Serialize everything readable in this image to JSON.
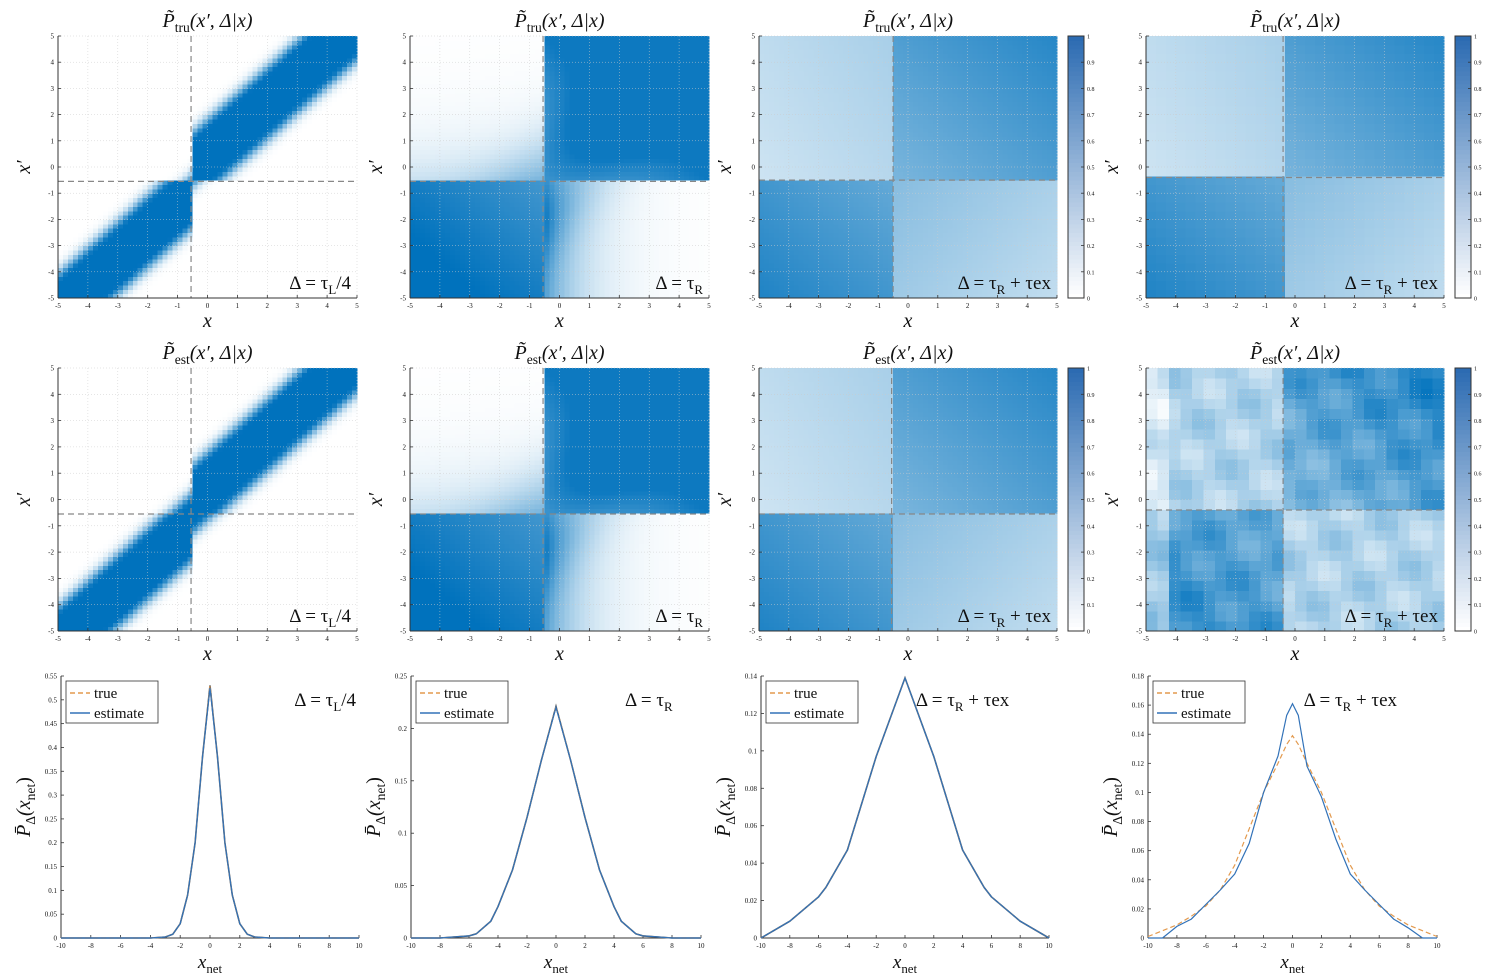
{
  "chart_data": [
    {
      "type": "heatmap",
      "row": 0,
      "col": 0,
      "title": "P̃tru(x′, Δ|x)",
      "title_base": "P̃",
      "title_sub": "tru",
      "title_args": "(x′, Δ|x)",
      "annotation_base": "Δ = τ",
      "annotation_sub": "L",
      "annotation_tail": "/4",
      "xlabel": "x",
      "ylabel": "x′",
      "xlim": [
        -5,
        5
      ],
      "ylim": [
        -5,
        5
      ],
      "xticks": [
        -5,
        -4,
        -3,
        -2,
        -1,
        0,
        1,
        2,
        3,
        4,
        5
      ],
      "yticks": [
        -5,
        -4,
        -3,
        -2,
        -1,
        0,
        1,
        2,
        3,
        4,
        5
      ],
      "threshold": -0.55,
      "pattern": "diagonal-band",
      "colorbar": false
    },
    {
      "type": "heatmap",
      "row": 0,
      "col": 1,
      "title": "P̃tru(x′, Δ|x)",
      "title_base": "P̃",
      "title_sub": "tru",
      "title_args": "(x′, Δ|x)",
      "annotation_base": "Δ = τ",
      "annotation_sub": "R",
      "annotation_tail": "",
      "xlabel": "x",
      "ylabel": "x′",
      "xlim": [
        -5,
        5
      ],
      "ylim": [
        -5,
        5
      ],
      "xticks": [
        -5,
        -4,
        -3,
        -2,
        -1,
        0,
        1,
        2,
        3,
        4,
        5
      ],
      "yticks": [
        -5,
        -4,
        -3,
        -2,
        -1,
        0,
        1,
        2,
        3,
        4,
        5
      ],
      "threshold": -0.55,
      "pattern": "blocks-strong",
      "colorbar": false
    },
    {
      "type": "heatmap",
      "row": 0,
      "col": 2,
      "title": "P̃tru(x′, Δ|x)",
      "title_base": "P̃",
      "title_sub": "tru",
      "title_args": "(x′, Δ|x)",
      "annotation_base": "Δ = τ",
      "annotation_sub": "R",
      "annotation_tail": " + τex",
      "xlabel": "x",
      "ylabel": "x′",
      "xlim": [
        -5,
        5
      ],
      "ylim": [
        -5,
        5
      ],
      "xticks": [
        -5,
        -4,
        -3,
        -2,
        -1,
        0,
        1,
        2,
        3,
        4,
        5
      ],
      "yticks": [
        -5,
        -4,
        -3,
        -2,
        -1,
        0,
        1,
        2,
        3,
        4,
        5
      ],
      "threshold": -0.5,
      "pattern": "blocks-soft",
      "colorbar": true,
      "colorbar_ticks": [
        0,
        0.1,
        0.2,
        0.3,
        0.4,
        0.5,
        0.6,
        0.7,
        0.8,
        0.9,
        1
      ]
    },
    {
      "type": "heatmap",
      "row": 0,
      "col": 3,
      "title": "P̃tru(x′, Δ|x)",
      "title_base": "P̃",
      "title_sub": "tru",
      "title_args": "(x′, Δ|x)",
      "annotation_base": "Δ = τ",
      "annotation_sub": "R",
      "annotation_tail": " + τex",
      "xlabel": "x",
      "ylabel": "x′",
      "xlim": [
        -5,
        5
      ],
      "ylim": [
        -5,
        5
      ],
      "xticks": [
        -5,
        -4,
        -3,
        -2,
        -1,
        0,
        1,
        2,
        3,
        4,
        5
      ],
      "yticks": [
        -5,
        -4,
        -3,
        -2,
        -1,
        0,
        1,
        2,
        3,
        4,
        5
      ],
      "threshold": -0.4,
      "pattern": "blocks-soft-pixel",
      "colorbar": true,
      "colorbar_ticks": [
        0,
        0.1,
        0.2,
        0.3,
        0.4,
        0.5,
        0.6,
        0.7,
        0.8,
        0.9,
        1
      ]
    },
    {
      "type": "heatmap",
      "row": 1,
      "col": 0,
      "title": "P̃est(x′, Δ|x)",
      "title_base": "P̃",
      "title_sub": "est",
      "title_args": "(x′, Δ|x)",
      "annotation_base": "Δ = τ",
      "annotation_sub": "L",
      "annotation_tail": "/4",
      "xlabel": "x",
      "ylabel": "x′",
      "xlim": [
        -5,
        5
      ],
      "ylim": [
        -5,
        5
      ],
      "xticks": [
        -5,
        -4,
        -3,
        -2,
        -1,
        0,
        1,
        2,
        3,
        4,
        5
      ],
      "yticks": [
        -5,
        -4,
        -3,
        -2,
        -1,
        0,
        1,
        2,
        3,
        4,
        5
      ],
      "threshold": -0.55,
      "pattern": "diagonal-band-smooth",
      "colorbar": false
    },
    {
      "type": "heatmap",
      "row": 1,
      "col": 1,
      "title": "P̃est(x′, Δ|x)",
      "title_base": "P̃",
      "title_sub": "est",
      "title_args": "(x′, Δ|x)",
      "annotation_base": "Δ = τ",
      "annotation_sub": "R",
      "annotation_tail": "",
      "xlabel": "x",
      "ylabel": "x′",
      "xlim": [
        -5,
        5
      ],
      "ylim": [
        -5,
        5
      ],
      "xticks": [
        -5,
        -4,
        -3,
        -2,
        -1,
        0,
        1,
        2,
        3,
        4,
        5
      ],
      "yticks": [
        -5,
        -4,
        -3,
        -2,
        -1,
        0,
        1,
        2,
        3,
        4,
        5
      ],
      "threshold": -0.55,
      "pattern": "blocks-strong",
      "colorbar": false
    },
    {
      "type": "heatmap",
      "row": 1,
      "col": 2,
      "title": "P̃est(x′, Δ|x)",
      "title_base": "P̃",
      "title_sub": "est",
      "title_args": "(x′, Δ|x)",
      "annotation_base": "Δ = τ",
      "annotation_sub": "R",
      "annotation_tail": " + τex",
      "xlabel": "x",
      "ylabel": "x′",
      "xlim": [
        -5,
        5
      ],
      "ylim": [
        -5,
        5
      ],
      "xticks": [
        -5,
        -4,
        -3,
        -2,
        -1,
        0,
        1,
        2,
        3,
        4,
        5
      ],
      "yticks": [
        -5,
        -4,
        -3,
        -2,
        -1,
        0,
        1,
        2,
        3,
        4,
        5
      ],
      "threshold": -0.55,
      "pattern": "blocks-soft",
      "colorbar": true,
      "colorbar_ticks": [
        0,
        0.1,
        0.2,
        0.3,
        0.4,
        0.5,
        0.6,
        0.7,
        0.8,
        0.9,
        1
      ]
    },
    {
      "type": "heatmap",
      "row": 1,
      "col": 3,
      "title": "P̃est(x′, Δ|x)",
      "title_base": "P̃",
      "title_sub": "est",
      "title_args": "(x′, Δ|x)",
      "annotation_base": "Δ = τ",
      "annotation_sub": "R",
      "annotation_tail": " + τex",
      "xlabel": "x",
      "ylabel": "x′",
      "xlim": [
        -5,
        5
      ],
      "ylim": [
        -5,
        5
      ],
      "xticks": [
        -5,
        -4,
        -3,
        -2,
        -1,
        0,
        1,
        2,
        3,
        4,
        5
      ],
      "yticks": [
        -5,
        -4,
        -3,
        -2,
        -1,
        0,
        1,
        2,
        3,
        4,
        5
      ],
      "threshold": -0.4,
      "pattern": "noisy",
      "colorbar": true,
      "colorbar_ticks": [
        0,
        0.1,
        0.2,
        0.3,
        0.4,
        0.5,
        0.6,
        0.7,
        0.8,
        0.9,
        1
      ]
    },
    {
      "type": "line",
      "row": 2,
      "col": 0,
      "annotation_base": "Δ = τ",
      "annotation_sub": "L",
      "annotation_tail": "/4",
      "xlabel": "xnet",
      "xlabel_base": "x",
      "xlabel_sub": "net",
      "ylabel_base": "P̄",
      "ylabel_sub": "Δ",
      "ylabel_args": "(x",
      "ylabel_args_sub": "net",
      "ylabel_close": ")",
      "xlim": [
        -10,
        10
      ],
      "ylim": [
        0,
        0.55
      ],
      "xticks": [
        -10,
        -8,
        -6,
        -4,
        -2,
        0,
        2,
        4,
        6,
        8,
        10
      ],
      "yticks": [
        0,
        0.05,
        0.1,
        0.15,
        0.2,
        0.25,
        0.3,
        0.35,
        0.4,
        0.45,
        0.5,
        0.55
      ],
      "legend": [
        "true",
        "estimate"
      ],
      "legend_loc": "top-left",
      "x": [
        -10,
        -4,
        -3,
        -2.5,
        -2,
        -1.5,
        -1,
        -0.5,
        0,
        0.5,
        1,
        1.5,
        2,
        2.5,
        3,
        4,
        10
      ],
      "series": [
        {
          "name": "true",
          "values": [
            0,
            0,
            0.002,
            0.008,
            0.03,
            0.09,
            0.2,
            0.38,
            0.53,
            0.38,
            0.2,
            0.09,
            0.03,
            0.008,
            0.002,
            0,
            0
          ]
        },
        {
          "name": "estimate",
          "values": [
            0,
            0,
            0.002,
            0.008,
            0.03,
            0.09,
            0.2,
            0.38,
            0.525,
            0.38,
            0.2,
            0.09,
            0.03,
            0.008,
            0.002,
            0,
            0
          ]
        }
      ]
    },
    {
      "type": "line",
      "row": 2,
      "col": 1,
      "annotation_base": "Δ = τ",
      "annotation_sub": "R",
      "annotation_tail": "",
      "xlabel": "xnet",
      "xlabel_base": "x",
      "xlabel_sub": "net",
      "ylabel_base": "P̄",
      "ylabel_sub": "Δ",
      "ylabel_args": "(x",
      "ylabel_args_sub": "net",
      "ylabel_close": ")",
      "xlim": [
        -10,
        10
      ],
      "ylim": [
        0,
        0.25
      ],
      "xticks": [
        -10,
        -8,
        -6,
        -4,
        -2,
        0,
        2,
        4,
        6,
        8,
        10
      ],
      "yticks": [
        0,
        0.05,
        0.1,
        0.15,
        0.2,
        0.25
      ],
      "legend": [
        "true",
        "estimate"
      ],
      "legend_loc": "top-left",
      "x": [
        -10,
        -8,
        -6,
        -5.5,
        -4.5,
        -4,
        -3,
        -2,
        -1,
        0,
        1,
        2,
        3,
        4,
        4.5,
        5.5,
        6,
        8,
        10
      ],
      "series": [
        {
          "name": "true",
          "values": [
            0,
            0,
            0.002,
            0.004,
            0.016,
            0.03,
            0.065,
            0.115,
            0.17,
            0.221,
            0.17,
            0.115,
            0.065,
            0.03,
            0.016,
            0.004,
            0.002,
            0,
            0
          ]
        },
        {
          "name": "estimate",
          "values": [
            0,
            0,
            0.002,
            0.004,
            0.016,
            0.03,
            0.065,
            0.115,
            0.17,
            0.22,
            0.17,
            0.115,
            0.065,
            0.03,
            0.016,
            0.004,
            0.002,
            0,
            0
          ]
        }
      ]
    },
    {
      "type": "line",
      "row": 2,
      "col": 2,
      "annotation_base": "Δ = τ",
      "annotation_sub": "R",
      "annotation_tail": " + τex",
      "xlabel": "xnet",
      "xlabel_base": "x",
      "xlabel_sub": "net",
      "ylabel_base": "P̄",
      "ylabel_sub": "Δ",
      "ylabel_args": "(x",
      "ylabel_args_sub": "net",
      "ylabel_close": ")",
      "xlim": [
        -10,
        10
      ],
      "ylim": [
        0,
        0.14
      ],
      "xticks": [
        -10,
        -8,
        -6,
        -4,
        -2,
        0,
        2,
        4,
        6,
        8,
        10
      ],
      "yticks": [
        0,
        0.02,
        0.04,
        0.06,
        0.08,
        0.1,
        0.12,
        0.14
      ],
      "legend": [
        "true",
        "estimate"
      ],
      "legend_loc": "top-left",
      "x": [
        -10,
        -8,
        -6,
        -5.5,
        -4,
        -2,
        0,
        2,
        4,
        5.5,
        6,
        8,
        10
      ],
      "series": [
        {
          "name": "true",
          "values": [
            0,
            0.009,
            0.022,
            0.027,
            0.047,
            0.097,
            0.139,
            0.097,
            0.047,
            0.027,
            0.022,
            0.009,
            0
          ]
        },
        {
          "name": "estimate",
          "values": [
            0,
            0.009,
            0.022,
            0.027,
            0.047,
            0.097,
            0.139,
            0.097,
            0.047,
            0.027,
            0.022,
            0.009,
            0
          ]
        }
      ]
    },
    {
      "type": "line",
      "row": 2,
      "col": 3,
      "annotation_base": "Δ = τ",
      "annotation_sub": "R",
      "annotation_tail": " + τex",
      "xlabel": "xnet",
      "xlabel_base": "x",
      "xlabel_sub": "net",
      "ylabel_base": "P̄",
      "ylabel_sub": "Δ",
      "ylabel_args": "(x",
      "ylabel_args_sub": "net",
      "ylabel_close": ")",
      "xlim": [
        -10,
        10
      ],
      "ylim": [
        0,
        0.18
      ],
      "xticks": [
        -10,
        -8,
        -6,
        -4,
        -2,
        0,
        2,
        4,
        6,
        8,
        10
      ],
      "yticks": [
        0,
        0.02,
        0.04,
        0.06,
        0.08,
        0.1,
        0.12,
        0.14,
        0.16,
        0.18
      ],
      "legend": [
        "true",
        "estimate"
      ],
      "legend_loc": "top-left",
      "x": [
        -10,
        -9,
        -8,
        -7,
        -6,
        -5,
        -4,
        -3,
        -2,
        -1,
        -0.4,
        0,
        0.4,
        1,
        2,
        3,
        4,
        5,
        6,
        7,
        8,
        9,
        10
      ],
      "series": [
        {
          "name": "true",
          "values": [
            0.001,
            0.005,
            0.009,
            0.015,
            0.022,
            0.033,
            0.05,
            0.075,
            0.1,
            0.12,
            0.133,
            0.139,
            0.133,
            0.12,
            0.1,
            0.075,
            0.05,
            0.033,
            0.022,
            0.015,
            0.009,
            0.005,
            0.001
          ]
        },
        {
          "name": "estimate",
          "values": [
            0,
            0,
            0.008,
            0.013,
            0.023,
            0.033,
            0.044,
            0.065,
            0.1,
            0.125,
            0.153,
            0.161,
            0.153,
            0.118,
            0.097,
            0.068,
            0.044,
            0.033,
            0.023,
            0.013,
            0.007,
            0,
            0
          ]
        }
      ]
    }
  ],
  "colors": {
    "heat_max": "#0072bd",
    "true_line": "#e39a4e",
    "estimate_line": "#3272b8",
    "dashed": "#888888"
  }
}
